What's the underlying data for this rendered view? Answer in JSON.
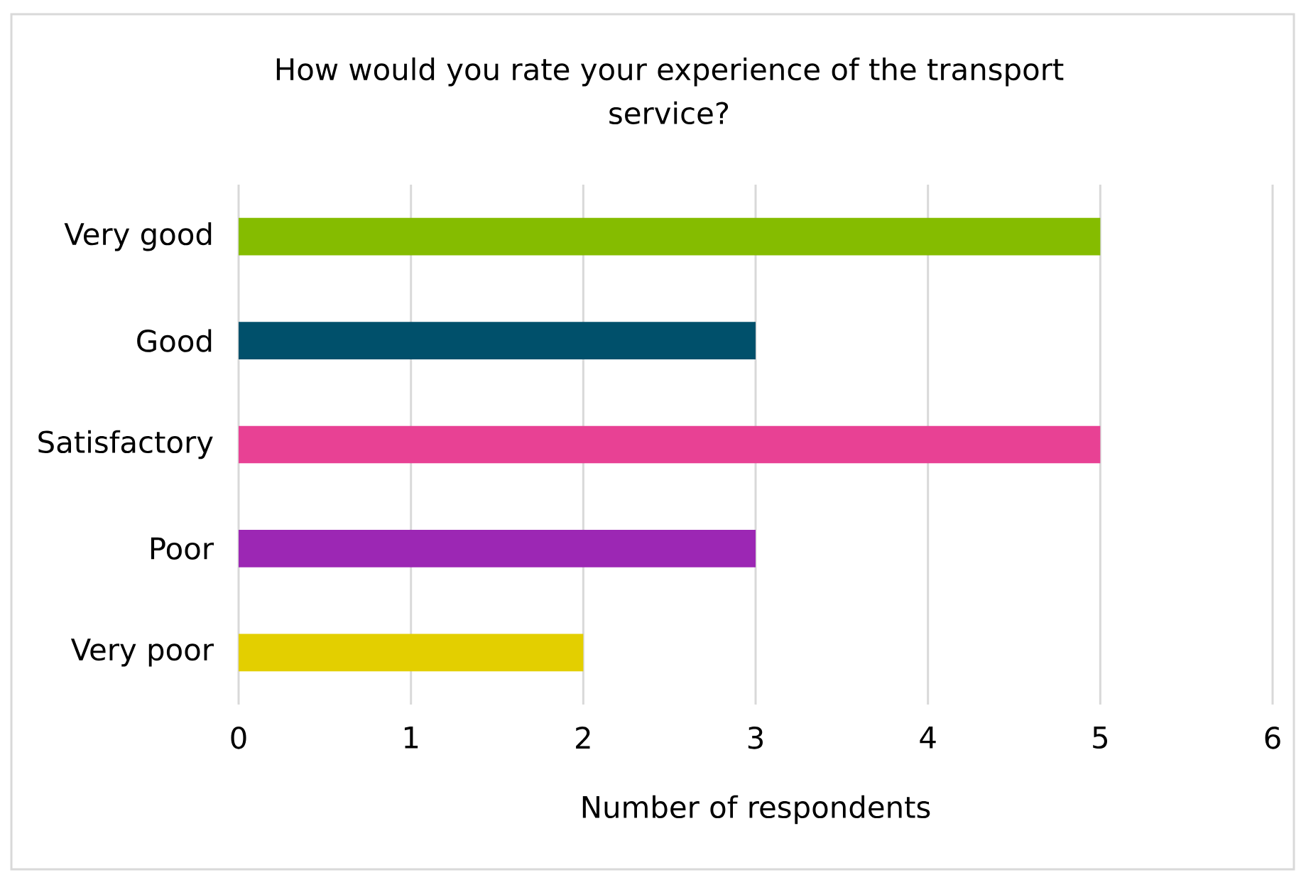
{
  "chart_data": {
    "type": "bar",
    "orientation": "horizontal",
    "title": "How would you rate your experience of the transport service?",
    "xlabel": "Number of respondents",
    "categories": [
      "Very good",
      "Good",
      "Satisfactory",
      "Poor",
      "Very poor"
    ],
    "values": [
      5,
      3,
      5,
      3,
      2
    ],
    "colors": [
      "#85bc00",
      "#00506b",
      "#e84194",
      "#9c27b4",
      "#e3cf00"
    ],
    "xlim": [
      0,
      6
    ],
    "xticks": [
      0,
      1,
      2,
      3,
      4,
      5,
      6
    ],
    "grid": "x"
  }
}
